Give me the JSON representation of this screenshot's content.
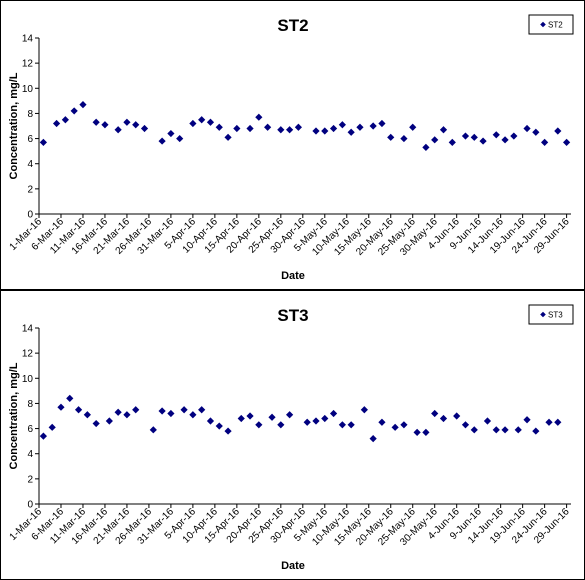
{
  "chart_data": [
    {
      "type": "scatter",
      "title": "ST2",
      "xlabel": "Date",
      "ylabel": "Concentration, mg/L",
      "ylim": [
        0,
        14
      ],
      "yticks": [
        0,
        2,
        4,
        6,
        8,
        10,
        12,
        14
      ],
      "xlim": [
        "2016-03-01",
        "2016-06-30"
      ],
      "xticks": [
        "1-Mar-16",
        "6-Mar-16",
        "11-Mar-16",
        "16-Mar-16",
        "21-Mar-16",
        "26-Mar-16",
        "31-Mar-16",
        "5-Apr-16",
        "10-Apr-16",
        "15-Apr-16",
        "20-Apr-16",
        "25-Apr-16",
        "30-Apr-16",
        "5-May-16",
        "10-May-16",
        "15-May-16",
        "20-May-16",
        "25-May-16",
        "30-May-16",
        "4-Jun-16",
        "9-Jun-16",
        "14-Jun-16",
        "19-Jun-16",
        "24-Jun-16",
        "29-Jun-16"
      ],
      "grid": false,
      "legend_position": "top-right",
      "marker_color": "#00007f",
      "series": [
        {
          "name": "ST2",
          "points": [
            [
              "2016-03-02",
              5.7
            ],
            [
              "2016-03-05",
              7.2
            ],
            [
              "2016-03-07",
              7.5
            ],
            [
              "2016-03-09",
              8.2
            ],
            [
              "2016-03-11",
              8.7
            ],
            [
              "2016-03-14",
              7.3
            ],
            [
              "2016-03-16",
              7.1
            ],
            [
              "2016-03-19",
              6.7
            ],
            [
              "2016-03-21",
              7.3
            ],
            [
              "2016-03-23",
              7.1
            ],
            [
              "2016-03-25",
              6.8
            ],
            [
              "2016-03-29",
              5.8
            ],
            [
              "2016-03-31",
              6.4
            ],
            [
              "2016-04-02",
              6.0
            ],
            [
              "2016-04-05",
              7.2
            ],
            [
              "2016-04-07",
              7.5
            ],
            [
              "2016-04-09",
              7.3
            ],
            [
              "2016-04-11",
              6.9
            ],
            [
              "2016-04-13",
              6.1
            ],
            [
              "2016-04-15",
              6.8
            ],
            [
              "2016-04-18",
              6.8
            ],
            [
              "2016-04-20",
              7.7
            ],
            [
              "2016-04-22",
              6.9
            ],
            [
              "2016-04-25",
              6.7
            ],
            [
              "2016-04-27",
              6.7
            ],
            [
              "2016-04-29",
              6.9
            ],
            [
              "2016-05-03",
              6.6
            ],
            [
              "2016-05-05",
              6.6
            ],
            [
              "2016-05-07",
              6.8
            ],
            [
              "2016-05-09",
              7.1
            ],
            [
              "2016-05-11",
              6.5
            ],
            [
              "2016-05-13",
              6.9
            ],
            [
              "2016-05-16",
              7.0
            ],
            [
              "2016-05-18",
              7.2
            ],
            [
              "2016-05-20",
              6.1
            ],
            [
              "2016-05-23",
              6.0
            ],
            [
              "2016-05-25",
              6.9
            ],
            [
              "2016-05-28",
              5.3
            ],
            [
              "2016-05-30",
              5.9
            ],
            [
              "2016-06-01",
              6.7
            ],
            [
              "2016-06-03",
              5.7
            ],
            [
              "2016-06-06",
              6.2
            ],
            [
              "2016-06-08",
              6.1
            ],
            [
              "2016-06-10",
              5.8
            ],
            [
              "2016-06-13",
              6.3
            ],
            [
              "2016-06-15",
              5.9
            ],
            [
              "2016-06-17",
              6.2
            ],
            [
              "2016-06-20",
              6.8
            ],
            [
              "2016-06-22",
              6.5
            ],
            [
              "2016-06-24",
              5.7
            ],
            [
              "2016-06-27",
              6.6
            ],
            [
              "2016-06-29",
              5.7
            ]
          ]
        }
      ]
    },
    {
      "type": "scatter",
      "title": "ST3",
      "xlabel": "Date",
      "ylabel": "Concentration, mg/L",
      "ylim": [
        0,
        14
      ],
      "yticks": [
        0,
        2,
        4,
        6,
        8,
        10,
        12,
        14
      ],
      "xlim": [
        "2016-03-01",
        "2016-06-30"
      ],
      "xticks": [
        "1-Mar-16",
        "6-Mar-16",
        "11-Mar-16",
        "16-Mar-16",
        "21-Mar-16",
        "26-Mar-16",
        "31-Mar-16",
        "5-Apr-16",
        "10-Apr-16",
        "15-Apr-16",
        "20-Apr-16",
        "25-Apr-16",
        "30-Apr-16",
        "5-May-16",
        "10-May-16",
        "15-May-16",
        "20-May-16",
        "25-May-16",
        "30-May-16",
        "4-Jun-16",
        "9-Jun-16",
        "14-Jun-16",
        "19-Jun-16",
        "24-Jun-16",
        "29-Jun-16"
      ],
      "grid": false,
      "legend_position": "top-right",
      "marker_color": "#00007f",
      "series": [
        {
          "name": "ST3",
          "points": [
            [
              "2016-03-02",
              5.4
            ],
            [
              "2016-03-04",
              6.1
            ],
            [
              "2016-03-06",
              7.7
            ],
            [
              "2016-03-08",
              8.4
            ],
            [
              "2016-03-10",
              7.5
            ],
            [
              "2016-03-12",
              7.1
            ],
            [
              "2016-03-14",
              6.4
            ],
            [
              "2016-03-17",
              6.6
            ],
            [
              "2016-03-19",
              7.3
            ],
            [
              "2016-03-21",
              7.1
            ],
            [
              "2016-03-23",
              7.5
            ],
            [
              "2016-03-27",
              5.9
            ],
            [
              "2016-03-29",
              7.4
            ],
            [
              "2016-03-31",
              7.2
            ],
            [
              "2016-04-03",
              7.5
            ],
            [
              "2016-04-05",
              7.1
            ],
            [
              "2016-04-07",
              7.5
            ],
            [
              "2016-04-09",
              6.6
            ],
            [
              "2016-04-11",
              6.2
            ],
            [
              "2016-04-13",
              5.8
            ],
            [
              "2016-04-16",
              6.8
            ],
            [
              "2016-04-18",
              7.0
            ],
            [
              "2016-04-20",
              6.3
            ],
            [
              "2016-04-23",
              6.9
            ],
            [
              "2016-04-25",
              6.3
            ],
            [
              "2016-04-27",
              7.1
            ],
            [
              "2016-05-01",
              6.5
            ],
            [
              "2016-05-03",
              6.6
            ],
            [
              "2016-05-05",
              6.8
            ],
            [
              "2016-05-07",
              7.2
            ],
            [
              "2016-05-09",
              6.3
            ],
            [
              "2016-05-11",
              6.3
            ],
            [
              "2016-05-14",
              7.5
            ],
            [
              "2016-05-16",
              5.2
            ],
            [
              "2016-05-18",
              6.5
            ],
            [
              "2016-05-21",
              6.1
            ],
            [
              "2016-05-23",
              6.3
            ],
            [
              "2016-05-26",
              5.7
            ],
            [
              "2016-05-28",
              5.7
            ],
            [
              "2016-05-30",
              7.2
            ],
            [
              "2016-06-01",
              6.8
            ],
            [
              "2016-06-04",
              7.0
            ],
            [
              "2016-06-06",
              6.3
            ],
            [
              "2016-06-08",
              5.9
            ],
            [
              "2016-06-11",
              6.6
            ],
            [
              "2016-06-13",
              5.9
            ],
            [
              "2016-06-15",
              5.9
            ],
            [
              "2016-06-18",
              5.9
            ],
            [
              "2016-06-20",
              6.7
            ],
            [
              "2016-06-22",
              5.8
            ],
            [
              "2016-06-25",
              6.5
            ],
            [
              "2016-06-27",
              6.5
            ]
          ]
        }
      ]
    }
  ]
}
